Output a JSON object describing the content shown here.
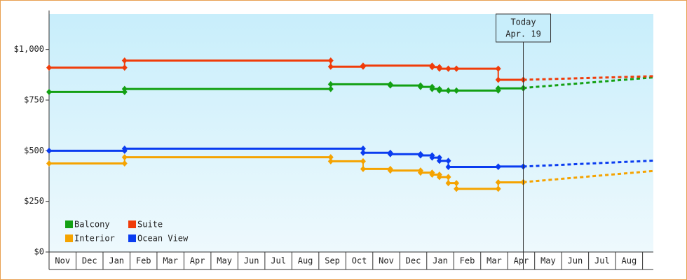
{
  "chart_data": {
    "type": "step",
    "categories": [
      "Nov",
      "Dec",
      "Jan",
      "Feb",
      "Mar",
      "Apr",
      "May",
      "Jun",
      "Jul",
      "Aug",
      "Sep",
      "Oct",
      "Nov",
      "Dec",
      "Jan",
      "Feb",
      "Mar",
      "Apr",
      "May",
      "Jun",
      "Jul",
      "Aug"
    ],
    "xlim": [
      0,
      22.4
    ],
    "ylim": [
      0,
      1175
    ],
    "yticks": [
      {
        "value": 0,
        "label": "$0"
      },
      {
        "value": 250,
        "label": "$250"
      },
      {
        "value": 500,
        "label": "$500"
      },
      {
        "value": 750,
        "label": "$750"
      },
      {
        "value": 1000,
        "label": "$1,000"
      }
    ],
    "annotation": {
      "x": 17.58,
      "lines": [
        "Today",
        "Apr. 19"
      ]
    },
    "legend": "bottom-left",
    "series": [
      {
        "name": "Balcony",
        "color": "#13a013",
        "x": [
          0,
          2.8,
          10.44,
          12.65,
          13.77,
          14.2,
          14.47,
          14.8,
          15.1,
          16.65,
          17.58
        ],
        "values": [
          790,
          805,
          828,
          822,
          815,
          805,
          797,
          797,
          797,
          808,
          810
        ],
        "forecast_x": [
          22.4
        ],
        "forecast_values": [
          862
        ]
      },
      {
        "name": "Suite",
        "color": "#f03c0a",
        "x": [
          0,
          2.8,
          10.44,
          11.64,
          14.2,
          14.47,
          14.8,
          15.1,
          16.65,
          17.58
        ],
        "values": [
          910,
          945,
          915,
          920,
          913,
          905,
          905,
          905,
          850,
          850
        ],
        "forecast_x": [
          22.4
        ],
        "forecast_values": [
          868
        ]
      },
      {
        "name": "Interior",
        "color": "#f5a300",
        "x": [
          0,
          2.8,
          10.44,
          11.64,
          12.65,
          13.77,
          14.2,
          14.47,
          14.8,
          15.1,
          16.65,
          17.58
        ],
        "values": [
          437,
          468,
          448,
          410,
          402,
          392,
          382,
          370,
          340,
          312,
          344,
          345
        ],
        "forecast_x": [
          22.4
        ],
        "forecast_values": [
          400
        ]
      },
      {
        "name": "Ocean View",
        "color": "#0a3cf0",
        "x": [
          0,
          2.8,
          11.64,
          12.65,
          13.77,
          14.2,
          14.47,
          14.8,
          16.65,
          17.58
        ],
        "values": [
          500,
          510,
          490,
          483,
          477,
          466,
          450,
          420,
          422,
          422
        ],
        "forecast_x": [
          22.4
        ],
        "forecast_values": [
          451
        ]
      }
    ]
  }
}
